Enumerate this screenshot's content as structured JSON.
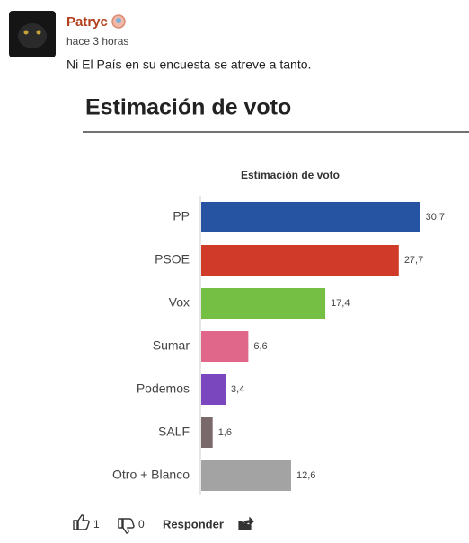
{
  "comment": {
    "author": "Patryc",
    "time": "hace 3 horas",
    "text": "Ni El País en su encuesta se atreve a tanto.",
    "likes": 1,
    "dislikes": 0,
    "reply_label": "Responder"
  },
  "chart_data": {
    "type": "bar",
    "orientation": "horizontal",
    "heading": "Estimación de voto",
    "title": "Estimación de voto",
    "categories": [
      "PP",
      "PSOE",
      "Vox",
      "Sumar",
      "Podemos",
      "SALF",
      "Otro + Blanco"
    ],
    "values": [
      30.7,
      27.7,
      17.4,
      6.6,
      3.4,
      1.6,
      12.6
    ],
    "value_labels": [
      "30,7",
      "27,7",
      "17,4",
      "6,6",
      "3,4",
      "1,6",
      "12,6"
    ],
    "colors": [
      "#2754a2",
      "#d03a29",
      "#75bf45",
      "#e0668a",
      "#7b47be",
      "#79696a",
      "#a3a3a3"
    ],
    "xlim": [
      0,
      31
    ]
  }
}
